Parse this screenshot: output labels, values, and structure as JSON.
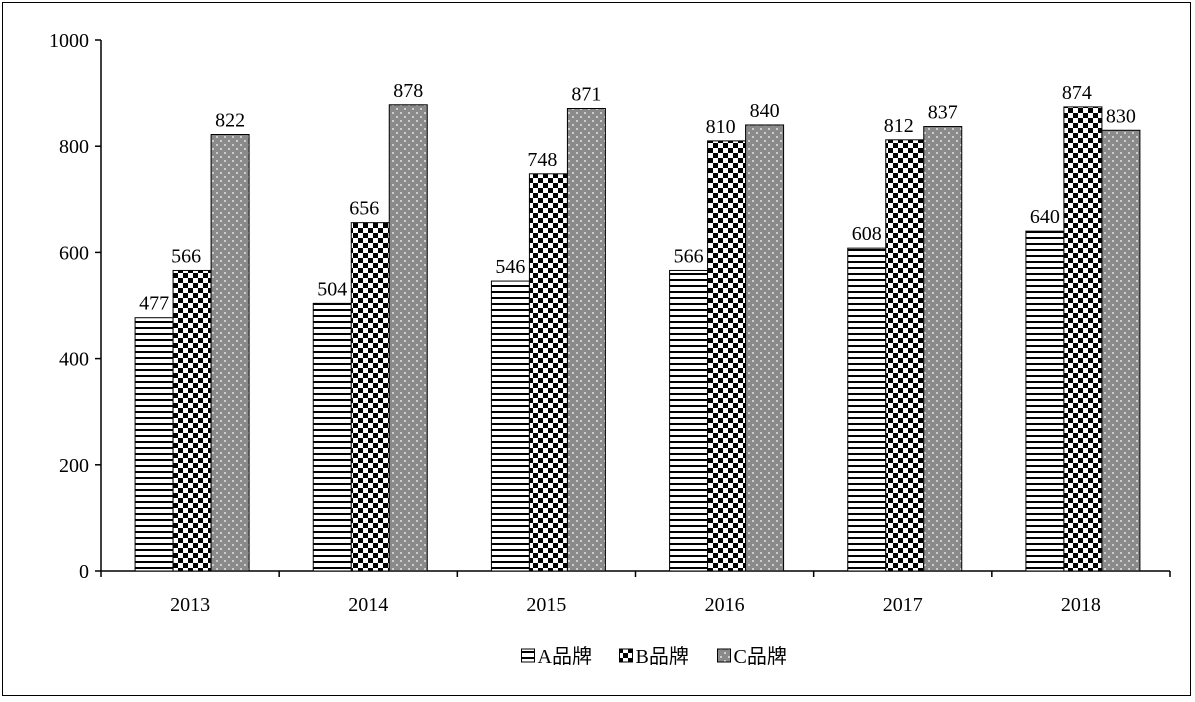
{
  "chart_data": {
    "type": "bar",
    "title": "",
    "xlabel": "",
    "ylabel": "",
    "categories": [
      "2013",
      "2014",
      "2015",
      "2016",
      "2017",
      "2018"
    ],
    "series": [
      {
        "name": "A品牌",
        "pattern": "horizontal-stripes",
        "values": [
          477,
          504,
          546,
          566,
          608,
          640
        ],
        "labels": [
          "477",
          "504",
          "546",
          "566",
          "608",
          "640"
        ]
      },
      {
        "name": "B品牌",
        "pattern": "checkerboard",
        "values": [
          566,
          656,
          748,
          810,
          812,
          874
        ],
        "labels": [
          "566",
          "656",
          "748",
          "810",
          "812",
          "874"
        ]
      },
      {
        "name": "C品牌",
        "pattern": "dotted-gray",
        "values": [
          822,
          878,
          871,
          840,
          837,
          830
        ],
        "labels": [
          "822",
          "878",
          "871",
          "840",
          "837",
          "830"
        ]
      }
    ],
    "ylim": [
      0,
      1000
    ],
    "yticks": [
      0,
      200,
      400,
      600,
      800,
      1000
    ],
    "ytick_labels": [
      "0",
      "200",
      "400",
      "600",
      "800",
      "1000"
    ],
    "grid": false,
    "legend_position": "bottom-center",
    "data_labels": true
  }
}
